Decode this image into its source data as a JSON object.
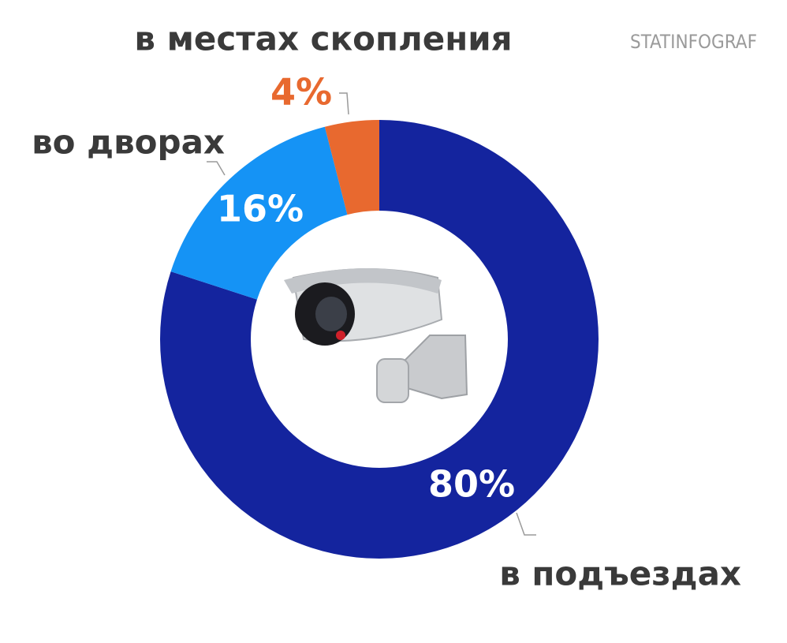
{
  "chart_data": {
    "type": "donut",
    "categories": [
      "в подъездах",
      "во дворах",
      "в местах скопления"
    ],
    "values": [
      80,
      16,
      4
    ],
    "value_labels": [
      "80%",
      "16%",
      "4%"
    ],
    "colors": [
      "#14249e",
      "#1593f5",
      "#e8692f"
    ],
    "watermark": "STATINFOGRAF"
  }
}
